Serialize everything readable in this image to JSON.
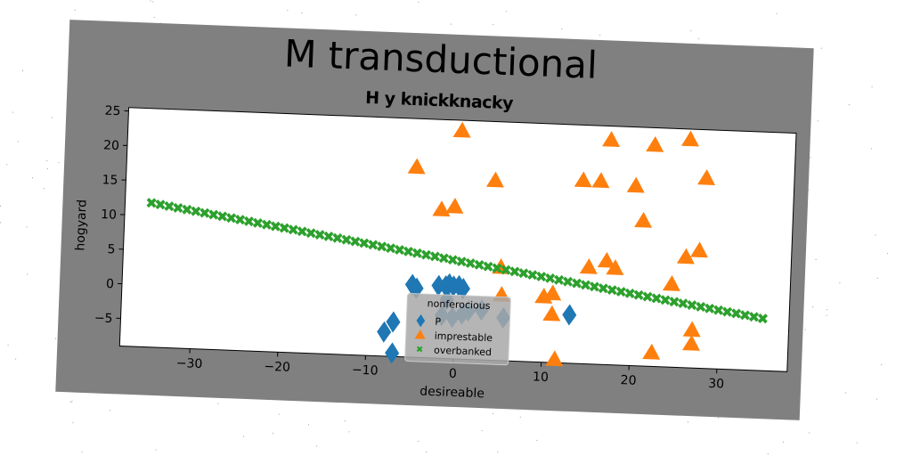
{
  "chart_data": {
    "type": "scatter",
    "title": "M transductional",
    "subtitle": "H y knickknacky",
    "xlabel": "desireable",
    "ylabel": "hogyard",
    "xlim": [
      -38,
      38
    ],
    "ylim": [
      -9,
      25.5
    ],
    "xticks": [
      -30,
      -20,
      -10,
      0,
      10,
      20,
      30
    ],
    "yticks": [
      -5,
      0,
      5,
      10,
      15,
      20,
      25
    ],
    "grid": false,
    "legend": {
      "title": "nonferocious",
      "placement": "lower-center",
      "entries": [
        "P",
        "imprestable",
        "overbanked"
      ]
    },
    "series": [
      {
        "name": "P",
        "marker": "diamond",
        "color": "#1f77b4",
        "points": [
          [
            -5,
            1.5
          ],
          [
            -4.5,
            1
          ],
          [
            -2,
            1.5
          ],
          [
            -1.2,
            1.5
          ],
          [
            -0.8,
            1.8
          ],
          [
            -0.3,
            1.5
          ],
          [
            0.3,
            1.6
          ],
          [
            0.8,
            1.2
          ],
          [
            -7,
            -4
          ],
          [
            -8,
            -5.5
          ],
          [
            -7,
            -8.5
          ],
          [
            -1.5,
            -2.8
          ],
          [
            -0.3,
            -3
          ],
          [
            0.8,
            -2.5
          ],
          [
            1.5,
            -2
          ],
          [
            3,
            -1.8
          ],
          [
            5.5,
            -2.8
          ],
          [
            13,
            -2
          ],
          [
            -1,
            -0.5
          ]
        ]
      },
      {
        "name": "imprestable",
        "marker": "triangle",
        "color": "#ff7f0e",
        "points": [
          [
            0,
            24
          ],
          [
            17,
            23.5
          ],
          [
            22,
            23
          ],
          [
            26,
            24
          ],
          [
            -5,
            18.5
          ],
          [
            4,
            17
          ],
          [
            14,
            17.5
          ],
          [
            16,
            17.5
          ],
          [
            20,
            17
          ],
          [
            28,
            18.5
          ],
          [
            -2,
            12.5
          ],
          [
            -0.5,
            13
          ],
          [
            21,
            12
          ],
          [
            26,
            7
          ],
          [
            27.5,
            8
          ],
          [
            15,
            5
          ],
          [
            17,
            6
          ],
          [
            18,
            5
          ],
          [
            5,
            4.5
          ],
          [
            5.2,
            0.5
          ],
          [
            10,
            0.5
          ],
          [
            11,
            1
          ],
          [
            24.5,
            3
          ],
          [
            11,
            -2
          ],
          [
            27,
            -3.5
          ],
          [
            22.5,
            -7
          ],
          [
            27,
            -5.5
          ],
          [
            11.5,
            -8.5
          ]
        ]
      },
      {
        "name": "overbanked",
        "marker": "x",
        "color": "#2ca02c",
        "line": {
          "x_start": -35,
          "x_end": 35,
          "count": 70,
          "slope": -0.19,
          "intercept": 5.2
        }
      }
    ]
  }
}
